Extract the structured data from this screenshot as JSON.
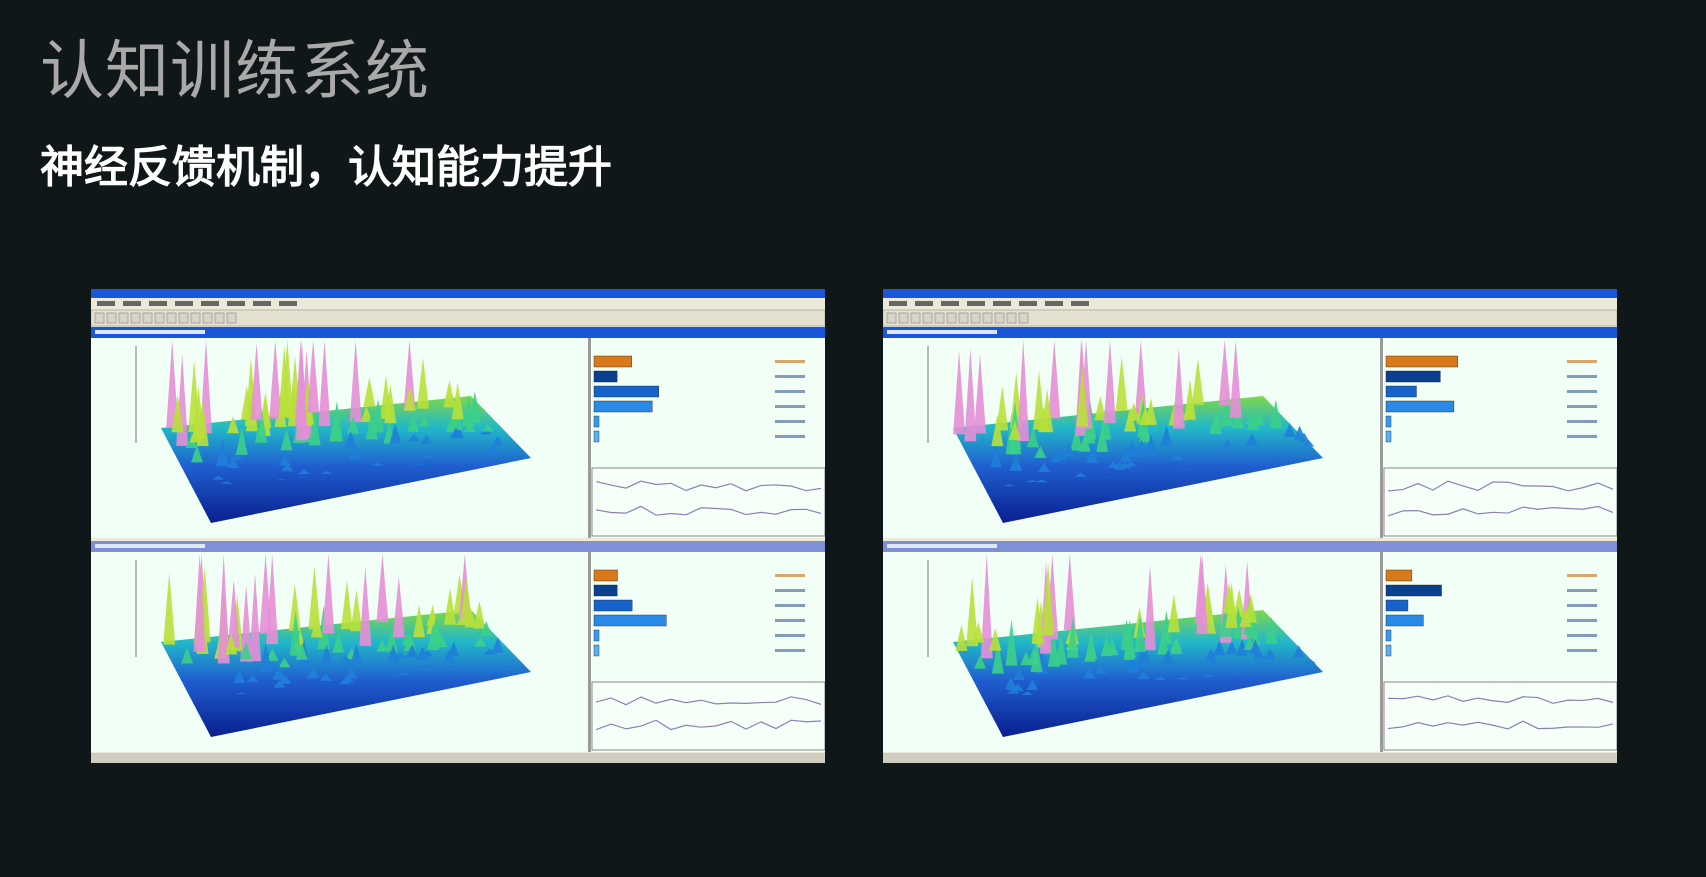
{
  "header": {
    "title": "认知训练系统",
    "subtitle": "神经反馈机制，认知能力提升"
  }
}
